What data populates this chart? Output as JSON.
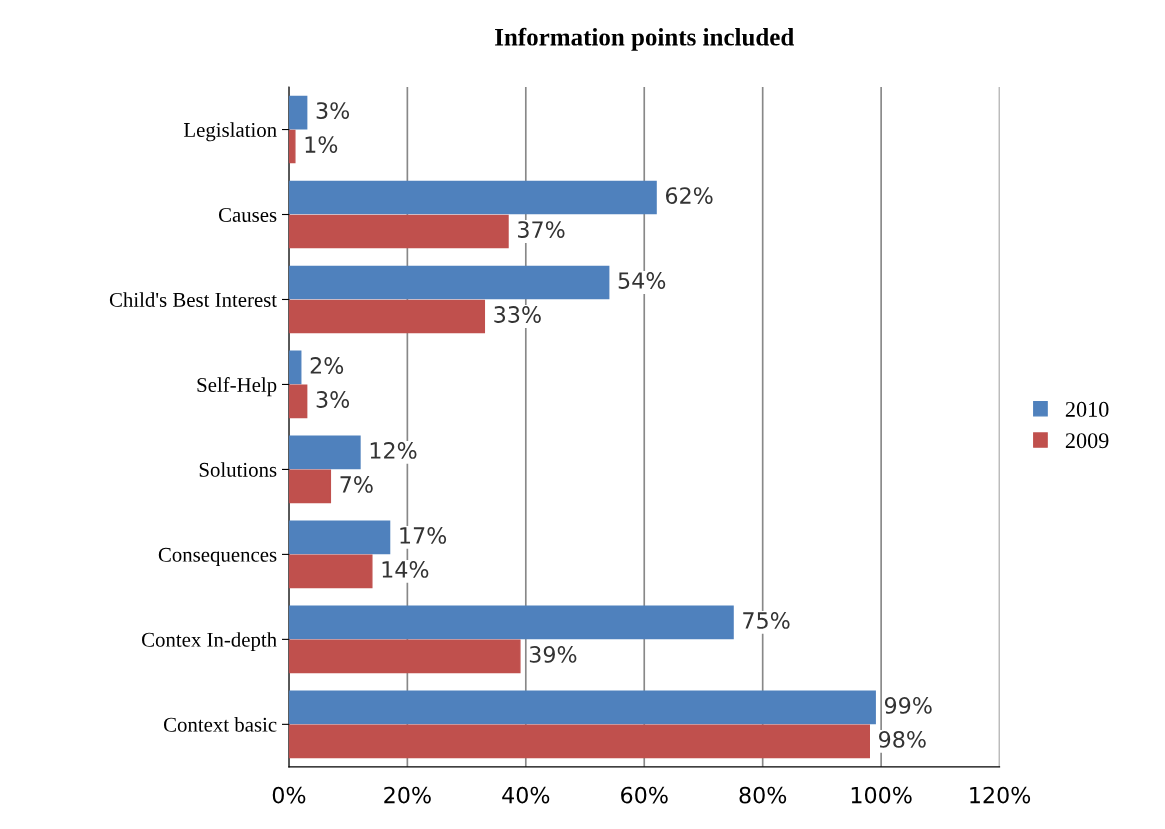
{
  "chart_data": {
    "type": "bar",
    "orientation": "horizontal",
    "title": "Information points included",
    "categories": [
      "Legislation",
      "Causes",
      "Child's Best Interest",
      "Self-Help",
      "Solutions",
      "Consequences",
      "Contex In-depth",
      "Context basic"
    ],
    "series": [
      {
        "name": "2010",
        "color": "#4f81bd",
        "values": [
          3,
          62,
          54,
          2,
          12,
          17,
          75,
          99
        ],
        "value_labels": [
          "3%",
          "62%",
          "54%",
          "2%",
          "12%",
          "17%",
          "75%",
          "99%"
        ]
      },
      {
        "name": "2009",
        "color": "#c0504d",
        "values": [
          1,
          37,
          33,
          3,
          7,
          14,
          39,
          98
        ],
        "value_labels": [
          "1%",
          "37%",
          "33%",
          "3%",
          "7%",
          "14%",
          "39%",
          "98%"
        ]
      }
    ],
    "xlim": [
      0,
      120
    ],
    "xticks": [
      {
        "value": 0,
        "label": "0%"
      },
      {
        "value": 20,
        "label": "20%"
      },
      {
        "value": 40,
        "label": "40%"
      },
      {
        "value": 60,
        "label": "60%"
      },
      {
        "value": 80,
        "label": "80%"
      },
      {
        "value": 100,
        "label": "100%"
      },
      {
        "value": 120,
        "label": "120%"
      }
    ],
    "grid": "x",
    "legend": "right"
  }
}
